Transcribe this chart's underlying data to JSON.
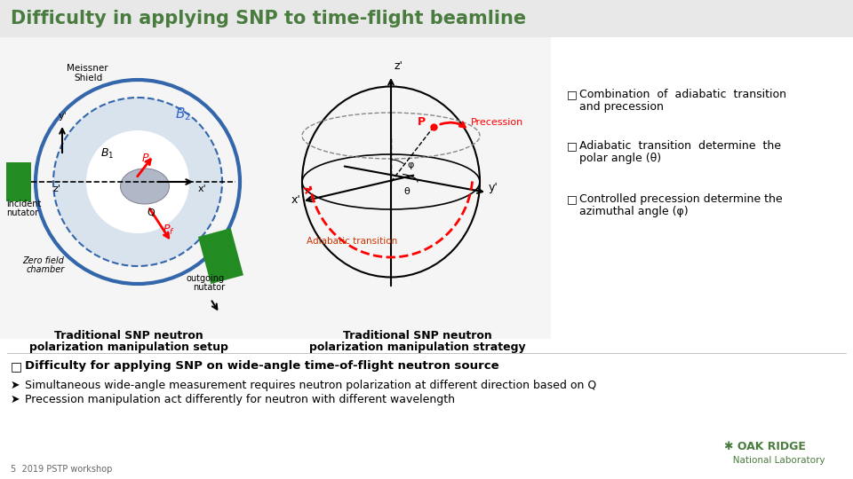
{
  "title": "Difficulty in applying SNP to time-flight beamline",
  "title_color": "#4a7c3f",
  "title_fontsize": 15,
  "slide_bg": "#ffffff",
  "header_bg": "#e8e8e8",
  "bullet1_line1": "Combination  of  adiabatic  transition",
  "bullet1_line2": "and precession",
  "bullet2_line1": "Adiabatic  transition  determine  the",
  "bullet2_line2": "polar angle (θ)",
  "bullet3_line1": "Controlled precession determine the",
  "bullet3_line2": "azimuthal angle (φ)",
  "caption_left1": "Traditional SNP neutron",
  "caption_left2": "polarization manipulation setup",
  "caption_right1": "Traditional SNP neutron",
  "caption_right2": "polarization manipulation strategy",
  "bottom_bold": "Difficulty for applying SNP on wide-angle time-of-flight neutron source",
  "bottom_arrow1": "Simultaneous wide-angle measurement requires neutron polarization at different direction based on Q",
  "bottom_arrow2": "Precession manipulation act differently for neutron with different wavelength",
  "slide_number": "5",
  "workshop": "2019 PSTP workshop",
  "logo_color": "#4a7c3f",
  "diagram_bg": "#f5f5f5"
}
